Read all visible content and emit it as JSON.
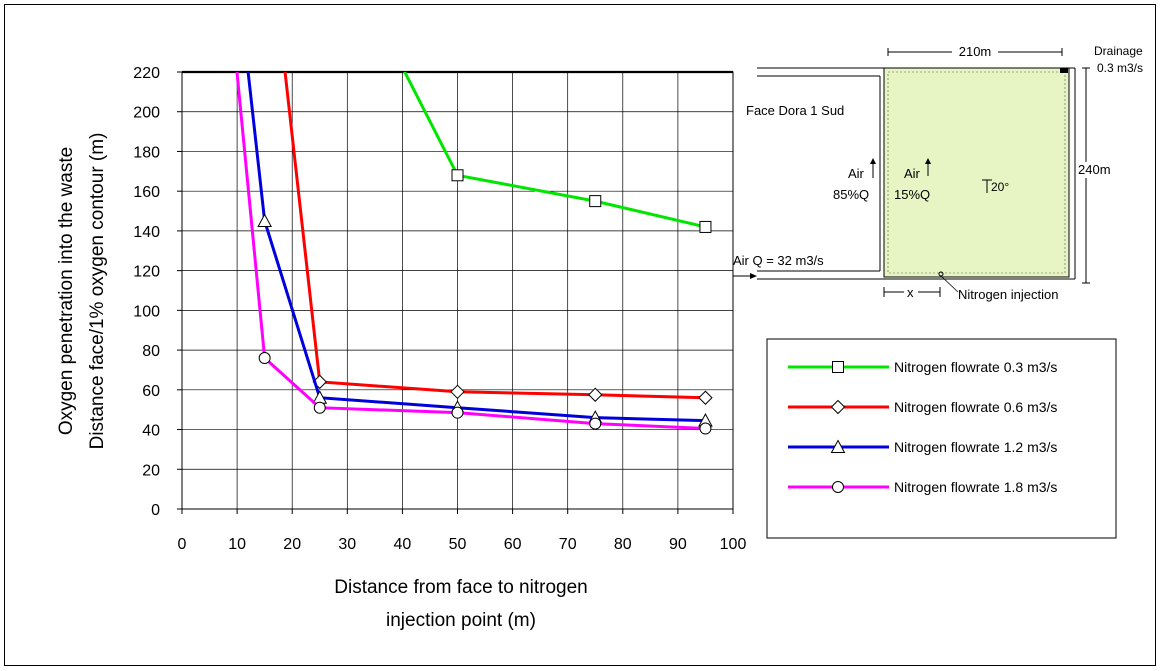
{
  "chart_data": {
    "type": "line",
    "xlabel": [
      "Distance from face to nitrogen",
      "injection point (m)"
    ],
    "ylabel": [
      "Oxygen penetration into the waste",
      "Distance face/1% oxygen contour (m)"
    ],
    "xlim": [
      0,
      100
    ],
    "ylim": [
      0,
      220
    ],
    "x_ticks": [
      "0",
      "10",
      "20",
      "30",
      "40",
      "50",
      "60",
      "70",
      "80",
      "90",
      "100"
    ],
    "y_ticks": [
      "0",
      "20",
      "40",
      "60",
      "80",
      "100",
      "120",
      "140",
      "160",
      "180",
      "200",
      "220"
    ],
    "grid": true,
    "legend_position": "right",
    "series": [
      {
        "name": "Nitrogen flowrate 0.3 m3/s",
        "color": "#00e600",
        "marker": "square",
        "line": [
          [
            39.5,
            225
          ],
          [
            50,
            168
          ],
          [
            75,
            155
          ],
          [
            95,
            142
          ]
        ],
        "markers": [
          [
            50,
            168
          ],
          [
            75,
            155
          ],
          [
            95,
            142
          ]
        ]
      },
      {
        "name": "Nitrogen flowrate 0.6 m3/s",
        "color": "#ff0000",
        "marker": "diamond",
        "line": [
          [
            18.5,
            225
          ],
          [
            25,
            64
          ],
          [
            50,
            59
          ],
          [
            75,
            57.5
          ],
          [
            95,
            56
          ]
        ],
        "markers": [
          [
            25,
            64
          ],
          [
            50,
            59
          ],
          [
            75,
            57.5
          ],
          [
            95,
            56
          ]
        ]
      },
      {
        "name": "Nitrogen flowrate 1.2 m3/s",
        "color": "#0000dd",
        "marker": "triangle",
        "line": [
          [
            11.8,
            225
          ],
          [
            15,
            145
          ],
          [
            25,
            56
          ],
          [
            50,
            51
          ],
          [
            75,
            46
          ],
          [
            95,
            44.5
          ]
        ],
        "markers": [
          [
            15,
            145
          ],
          [
            25,
            56
          ],
          [
            50,
            51
          ],
          [
            75,
            46
          ],
          [
            95,
            44.5
          ]
        ]
      },
      {
        "name": "Nitrogen flowrate 1.8 m3/s",
        "color": "#ff00ff",
        "marker": "circle",
        "line": [
          [
            9.8,
            225
          ],
          [
            15,
            76
          ],
          [
            25,
            51
          ],
          [
            50,
            48.5
          ],
          [
            75,
            43
          ],
          [
            95,
            40.5
          ]
        ],
        "markers": [
          [
            15,
            76
          ],
          [
            25,
            51
          ],
          [
            50,
            48.5
          ],
          [
            75,
            43
          ],
          [
            95,
            40.5
          ]
        ]
      }
    ]
  },
  "diagram": {
    "width_label": "210m",
    "height_label": "240m",
    "drainage_label": "Drainage",
    "drainage_rate": "0.3 m3/s",
    "face_label": "Face Dora 1 Sud",
    "air_label_left": "Air",
    "air_pct_left": "85%Q",
    "air_label_right": "Air",
    "air_pct_right": "15%Q",
    "angle_label": "20°",
    "air_inlet_label": "Air Q = 32 m3/s",
    "x_label": "x",
    "injection_label": "Nitrogen injection",
    "panel_color": "#e6f5c3"
  }
}
